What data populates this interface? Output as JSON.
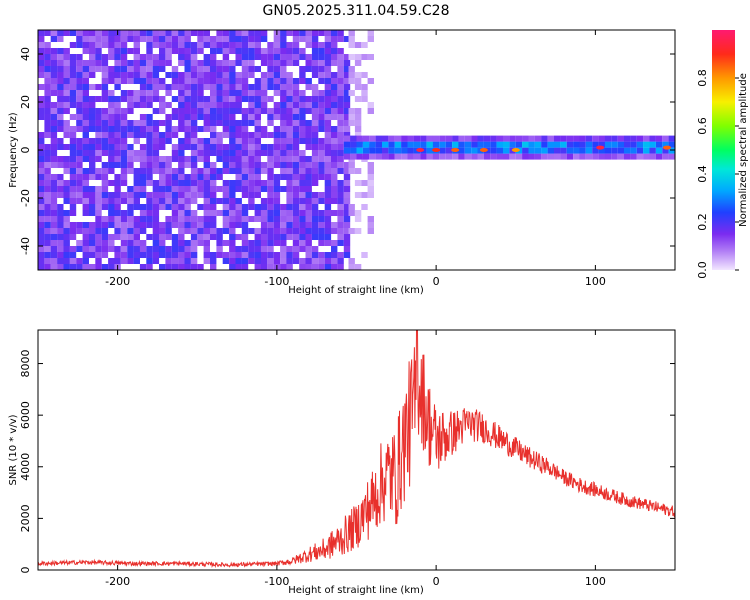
{
  "title": "GN05.2025.311.04.59.C28",
  "colors": {
    "spectrogram_noise": "#7b2cf0",
    "spectrogram_band": "#00e0c0",
    "spectrogram_peak": "#ff2020",
    "snr_line": "#e8302c",
    "frame": "#000000"
  },
  "chart_data": [
    {
      "type": "heatmap",
      "xlabel": "Height of straight line (km)",
      "ylabel": "Frequency (Hz)",
      "xlim": [
        -250,
        150
      ],
      "ylim": [
        -50,
        50
      ],
      "xticks": [
        -200,
        -100,
        0,
        100
      ],
      "yticks": [
        -40,
        -20,
        0,
        20,
        40
      ],
      "colorbar": {
        "label": "Normalized spectral amplitude",
        "range": [
          0.0,
          1.0
        ],
        "ticks": [
          0.0,
          0.2,
          0.4,
          0.6,
          0.8
        ],
        "tick_labels": [
          "0.0",
          "0.2",
          "0.4",
          "0.6",
          "0.8"
        ]
      },
      "regions": [
        {
          "x": [
            -250,
            -55
          ],
          "y": [
            -50,
            50
          ],
          "amplitude": 0.15,
          "kind": "noise"
        },
        {
          "x": [
            -55,
            -40
          ],
          "y": [
            -50,
            50
          ],
          "amplitude": 0.05,
          "kind": "noise-fade"
        },
        {
          "x": [
            -58,
            150
          ],
          "y": [
            -4,
            4
          ],
          "amplitude": 0.35,
          "kind": "signal-band"
        }
      ],
      "peaks": [
        {
          "x": -10,
          "y": 0,
          "amplitude": 0.95
        },
        {
          "x": 0,
          "y": 0,
          "amplitude": 0.9
        },
        {
          "x": 12,
          "y": 0,
          "amplitude": 0.85
        },
        {
          "x": 30,
          "y": 0,
          "amplitude": 0.85
        },
        {
          "x": 50,
          "y": 0,
          "amplitude": 0.8
        },
        {
          "x": 103,
          "y": 1,
          "amplitude": 0.95
        },
        {
          "x": 145,
          "y": 1,
          "amplitude": 0.85
        }
      ]
    },
    {
      "type": "line",
      "xlabel": "Height of straight line (km)",
      "ylabel": "SNR (10 * v/v)",
      "xlim": [
        -250,
        150
      ],
      "ylim": [
        0,
        9300
      ],
      "xticks": [
        -200,
        -100,
        0,
        100
      ],
      "yticks": [
        0,
        2000,
        4000,
        6000,
        8000
      ],
      "series": [
        {
          "x": [
            -250,
            -220,
            -190,
            -160,
            -130,
            -100,
            -90,
            -80,
            -70,
            -60,
            -50,
            -45,
            -40,
            -35,
            -30,
            -25,
            -20,
            -15,
            -10,
            -5,
            0,
            10,
            20,
            30,
            40,
            50,
            60,
            70,
            80,
            90,
            100,
            110,
            120,
            130,
            140,
            150
          ],
          "y": [
            250,
            300,
            250,
            250,
            200,
            250,
            350,
            600,
            800,
            1200,
            1700,
            2200,
            2600,
            3300,
            3700,
            3600,
            5000,
            6000,
            7200,
            5800,
            5000,
            5300,
            5700,
            5500,
            5100,
            4700,
            4300,
            4000,
            3600,
            3300,
            3100,
            2900,
            2700,
            2550,
            2400,
            2250
          ],
          "noise": [
            80,
            80,
            80,
            80,
            80,
            80,
            150,
            300,
            450,
            700,
            900,
            1100,
            1400,
            1600,
            1800,
            2000,
            2400,
            2600,
            2200,
            1800,
            1400,
            900,
            700,
            600,
            500,
            450,
            400,
            350,
            300,
            300,
            280,
            260,
            250,
            240,
            230,
            220
          ]
        }
      ],
      "peak": {
        "x": -12,
        "y": 9300
      }
    }
  ]
}
